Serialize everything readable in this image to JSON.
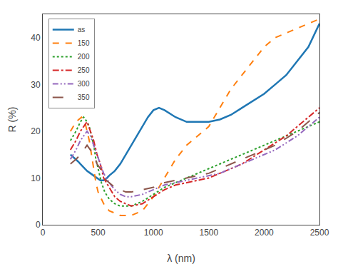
{
  "chart_data": {
    "type": "line",
    "xlabel": "λ (nm)",
    "ylabel": "R (%)",
    "xlim": [
      0,
      2500
    ],
    "ylim": [
      0,
      45
    ],
    "xticks": [
      0,
      500,
      1000,
      1500,
      2000,
      2500
    ],
    "yticks": [
      0,
      10,
      20,
      30,
      40
    ],
    "grid": false,
    "legend": "upper left",
    "series": [
      {
        "name": "as",
        "line_style": "solid",
        "x": [
          250,
          300,
          320,
          340,
          360,
          380,
          400,
          430,
          460,
          490,
          520,
          550,
          580,
          600,
          650,
          700,
          750,
          800,
          850,
          900,
          950,
          1000,
          1050,
          1100,
          1200,
          1300,
          1400,
          1500,
          1600,
          1700,
          1800,
          1900,
          2000,
          2100,
          2200,
          2300,
          2400,
          2500
        ],
        "values": [
          15,
          14,
          13.5,
          13,
          12.5,
          12,
          11.5,
          11,
          10.5,
          10,
          9.5,
          9.5,
          10,
          10.5,
          11.5,
          13,
          15,
          17,
          19,
          21,
          23,
          24.5,
          25,
          24.5,
          23,
          22,
          22,
          22,
          22.5,
          23.5,
          25,
          26.5,
          28,
          30,
          32,
          35,
          38,
          43
        ]
      },
      {
        "name": "150",
        "line_style": "dash",
        "x": [
          250,
          300,
          350,
          380,
          400,
          420,
          440,
          460,
          480,
          500,
          550,
          600,
          650,
          700,
          750,
          800,
          900,
          1000,
          1100,
          1200,
          1300,
          1400,
          1500,
          1600,
          1700,
          1800,
          1900,
          2000,
          2100,
          2200,
          2300,
          2400,
          2500
        ],
        "values": [
          20,
          22,
          23,
          22,
          20,
          18,
          15,
          12,
          9,
          7,
          4.5,
          3,
          2.5,
          2,
          2,
          2,
          3,
          6,
          10,
          14,
          17,
          19,
          21,
          25,
          29,
          32,
          35,
          38,
          40,
          41,
          42,
          43,
          44
        ]
      },
      {
        "name": "200",
        "line_style": "dot",
        "x": [
          250,
          300,
          340,
          370,
          400,
          420,
          440,
          460,
          480,
          500,
          530,
          560,
          600,
          650,
          700,
          750,
          800,
          900,
          1000,
          1100,
          1200,
          1300,
          1400,
          1500,
          1600,
          1700,
          1800,
          1900,
          2000,
          2100,
          2200,
          2300,
          2400,
          2500
        ],
        "values": [
          18,
          20,
          22,
          23,
          22,
          21,
          19,
          17,
          14,
          12,
          9,
          7,
          5.5,
          4.5,
          4,
          4,
          4,
          5,
          6.5,
          8,
          9,
          10,
          11,
          12,
          13,
          14,
          15,
          16,
          17,
          18,
          19,
          20,
          21,
          22
        ]
      },
      {
        "name": "250",
        "line_style": "dashdot",
        "x": [
          250,
          300,
          340,
          370,
          400,
          430,
          460,
          490,
          520,
          550,
          600,
          650,
          700,
          750,
          800,
          900,
          1000,
          1100,
          1200,
          1300,
          1400,
          1500,
          1600,
          1700,
          1800,
          1900,
          2000,
          2100,
          2200,
          2300,
          2400,
          2500
        ],
        "values": [
          16,
          18,
          20,
          21,
          22,
          20,
          18,
          15,
          13,
          10,
          8,
          6,
          5,
          4.5,
          4,
          4.5,
          6,
          7.5,
          8.5,
          9,
          9.5,
          10,
          11,
          12,
          13,
          14.5,
          16,
          17.5,
          19,
          21,
          23,
          25
        ]
      },
      {
        "name": "300",
        "line_style": "dashdotdot",
        "x": [
          250,
          300,
          340,
          370,
          400,
          430,
          460,
          490,
          520,
          550,
          600,
          650,
          700,
          750,
          800,
          900,
          1000,
          1100,
          1200,
          1300,
          1400,
          1500,
          1600,
          1700,
          1800,
          1900,
          2000,
          2100,
          2200,
          2300,
          2400,
          2500
        ],
        "values": [
          14,
          16,
          18,
          19,
          20,
          19,
          17,
          15,
          13,
          11,
          9,
          7.5,
          6.5,
          6,
          6,
          6.5,
          7.5,
          8.5,
          9,
          9.5,
          10,
          10.5,
          11,
          12,
          13,
          14,
          15,
          16,
          17.5,
          19,
          21,
          23
        ]
      },
      {
        "name": "350",
        "line_style": "longdash",
        "x": [
          250,
          300,
          340,
          370,
          400,
          430,
          460,
          490,
          520,
          550,
          600,
          650,
          700,
          750,
          800,
          900,
          1000,
          1100,
          1200,
          1300,
          1400,
          1500,
          1600,
          1700,
          1800,
          1900,
          2000,
          2100,
          2200,
          2300,
          2400,
          2500
        ],
        "values": [
          13,
          14,
          15,
          16,
          17,
          16,
          15,
          13,
          12,
          10,
          9,
          8,
          7.5,
          7,
          7,
          7.5,
          8,
          9,
          9.5,
          10,
          10.5,
          11,
          12,
          13,
          14,
          15,
          16,
          17,
          18.5,
          20,
          22,
          24
        ]
      }
    ]
  }
}
